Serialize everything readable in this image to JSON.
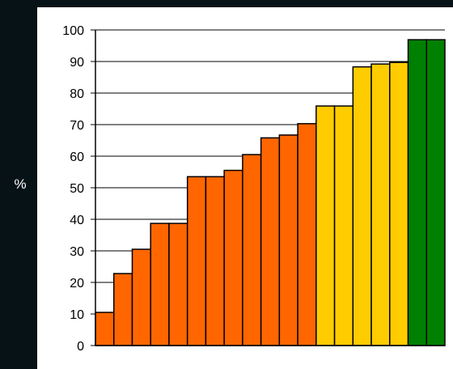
{
  "chart_data": {
    "type": "bar",
    "title": "",
    "xlabel": "",
    "ylabel": "%",
    "ylim": [
      0,
      100
    ],
    "yticks": [
      0,
      10,
      20,
      30,
      40,
      50,
      60,
      70,
      80,
      90,
      100
    ],
    "grid": true,
    "legend": "none",
    "values": [
      10.5,
      22.8,
      30.5,
      38.7,
      38.7,
      53.5,
      53.5,
      55.5,
      60.5,
      65.8,
      66.7,
      70.3,
      75.9,
      75.9,
      88.3,
      89.2,
      89.7,
      96.9,
      96.9
    ],
    "bar_colors": [
      "#ff6600",
      "#ff6600",
      "#ff6600",
      "#ff6600",
      "#ff6600",
      "#ff6600",
      "#ff6600",
      "#ff6600",
      "#ff6600",
      "#ff6600",
      "#ff6600",
      "#ff6600",
      "#ffcc00",
      "#ffcc00",
      "#ffcc00",
      "#ffcc00",
      "#ffcc00",
      "#008000",
      "#008000"
    ]
  },
  "colors": {
    "background_dark": "#061216",
    "plot_background": "#ffffff",
    "axis": "#000000",
    "orange": "#ff6600",
    "yellow": "#ffcc00",
    "green": "#008000"
  }
}
